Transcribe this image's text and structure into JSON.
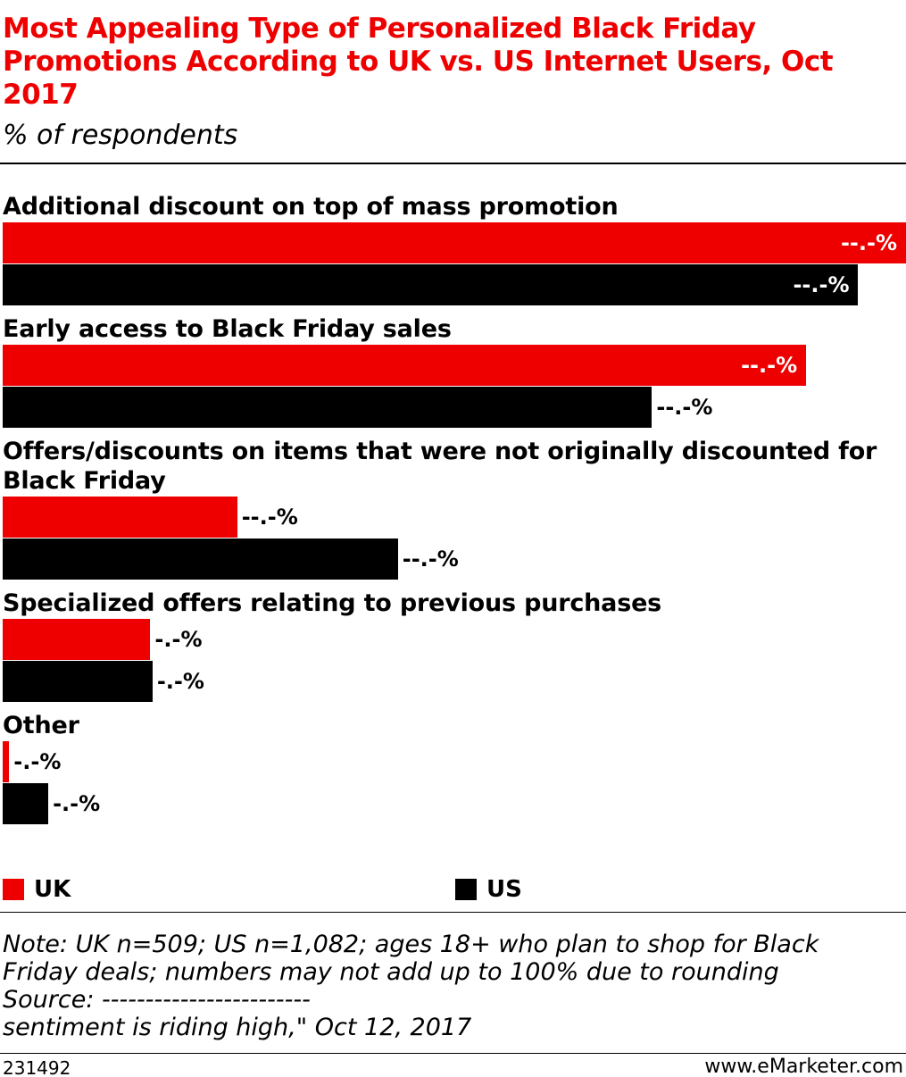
{
  "chart_data": {
    "type": "bar",
    "orientation": "horizontal",
    "title": "Most Appealing Type of Personalized Black Friday Promotions According to UK vs. US Internet Users, Oct 2017",
    "subtitle": "% of respondents",
    "categories": [
      "Additional discount on top of mass promotion",
      "Early access to Black Friday sales",
      "Offers/discounts on items that were not originally discounted for Black Friday",
      "Specialized offers relating to previous purchases",
      "Other"
    ],
    "series": [
      {
        "name": "UK",
        "color": "#ee0000",
        "values": [
          41.6,
          37.0,
          10.8,
          6.8,
          0.3
        ],
        "value_labels": [
          "--.-%",
          "--.-%",
          "--.-%",
          "-.-%",
          "-.-%"
        ]
      },
      {
        "name": "US",
        "color": "#000000",
        "values": [
          39.4,
          29.9,
          18.2,
          6.9,
          2.1
        ],
        "value_labels": [
          "--.-%",
          "--.-%",
          "--.-%",
          "-.-%",
          "-.-%"
        ]
      }
    ],
    "notes": [
      "Note: UK n=509; US n=1,082; ages 18+ who plan to shop for Black Friday deals; numbers may not add up to 100% due to rounding",
      "Source: ------------------------",
      "sentiment is riding high,\" Oct 12, 2017"
    ],
    "chart_id": "231492",
    "site": "www.eMarketer.com"
  }
}
